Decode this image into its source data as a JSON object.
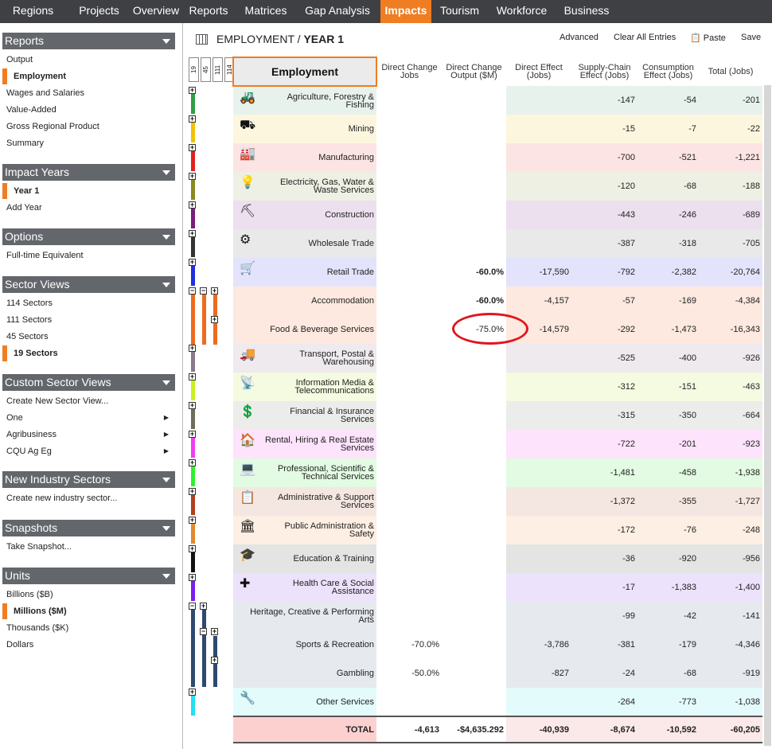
{
  "nav": {
    "tabs": [
      "Regions",
      "Projects",
      "Overview",
      "Reports",
      "Matrices",
      "Gap Analysis",
      "Impacts",
      "Tourism",
      "Workforce",
      "Business"
    ],
    "active": "Impacts"
  },
  "sidebar": {
    "reports": {
      "title": "Reports",
      "items": [
        "Output",
        "Employment",
        "Wages and Salaries",
        "Value-Added",
        "Gross Regional Product",
        "Summary"
      ],
      "selected": "Employment"
    },
    "impact_years": {
      "title": "Impact Years",
      "items": [
        "Year 1",
        "Add Year"
      ],
      "selected": "Year 1"
    },
    "options": {
      "title": "Options",
      "items": [
        "Full-time Equivalent"
      ]
    },
    "sector_views": {
      "title": "Sector Views",
      "items": [
        "114 Sectors",
        "111 Sectors",
        "45 Sectors",
        "19 Sectors"
      ],
      "selected": "19 Sectors"
    },
    "custom_views": {
      "title": "Custom Sector Views",
      "items": [
        "Create New Sector View...",
        "One",
        "Agribusiness",
        "CQU Ag Eg"
      ]
    },
    "new_industry": {
      "title": "New Industry Sectors",
      "items": [
        "Create new industry sector..."
      ]
    },
    "snapshots": {
      "title": "Snapshots",
      "items": [
        "Take Snapshot..."
      ]
    },
    "units": {
      "title": "Units",
      "items": [
        "Billions ($B)",
        "Millions ($M)",
        "Thousands ($K)",
        "Dollars"
      ],
      "selected": "Millions ($M)"
    }
  },
  "toolbar": {
    "title_a": "EMPLOYMENT",
    "sep": "/",
    "title_b": "YEAR 1",
    "advanced": "Advanced",
    "clear": "Clear All Entries",
    "paste": "Paste",
    "save": "Save"
  },
  "levels": [
    "19",
    "45",
    "111",
    "114"
  ],
  "columns": [
    "Employment",
    "Direct Change Jobs",
    "Direct Change Output ($M)",
    "Direct Effect (Jobs)",
    "Supply-Chain Effect (Jobs)",
    "Consumption Effect (Jobs)",
    "Total (Jobs)"
  ],
  "colors": {
    "accent": "#ef7d22",
    "nav": "#3e4044",
    "sidebar_header": "#63676c",
    "circle": "#e0161e"
  },
  "rows": [
    {
      "name": "Agriculture, Forestry & Fishing",
      "icon": "tractor-icon",
      "glyph": "🚜",
      "color": "#e8f2ec",
      "tree": "#2f9e44",
      "dcj": "",
      "dco": "",
      "de": "",
      "sc": "-147",
      "ce": "-54",
      "tot": "-201"
    },
    {
      "name": "Mining",
      "icon": "mining-truck-icon",
      "glyph": "⛟",
      "color": "#fdf6de",
      "tree": "#f2c200",
      "dcj": "",
      "dco": "",
      "de": "",
      "sc": "-15",
      "ce": "-7",
      "tot": "-22"
    },
    {
      "name": "Manufacturing",
      "icon": "factory-icon",
      "glyph": "🏭",
      "color": "#fde4e4",
      "tree": "#e02020",
      "dcj": "",
      "dco": "",
      "de": "",
      "sc": "-700",
      "ce": "-521",
      "tot": "-1,221"
    },
    {
      "name": "Electricity, Gas, Water & Waste Services",
      "icon": "lightbulb-icon",
      "glyph": "💡",
      "color": "#eef0e4",
      "tree": "#8a8a1e",
      "dcj": "",
      "dco": "",
      "de": "",
      "sc": "-120",
      "ce": "-68",
      "tot": "-188"
    },
    {
      "name": "Construction",
      "icon": "construction-worker-icon",
      "glyph": "⛏",
      "color": "#ece0ee",
      "tree": "#7a1e7e",
      "dcj": "",
      "dco": "",
      "de": "",
      "sc": "-443",
      "ce": "-246",
      "tot": "-689"
    },
    {
      "name": "Wholesale Trade",
      "icon": "forklift-icon",
      "glyph": "⚙",
      "color": "#e9e9e9",
      "tree": "#333333",
      "dcj": "",
      "dco": "",
      "de": "",
      "sc": "-387",
      "ce": "-318",
      "tot": "-705"
    },
    {
      "name": "Retail Trade",
      "icon": "shopping-cart-icon",
      "glyph": "🛒",
      "color": "#e3e3fb",
      "tree": "#1e2ee0",
      "dcj": "",
      "dco": "-60.0%",
      "de": "-17,590",
      "sc": "-792",
      "ce": "-2,382",
      "tot": "-20,764"
    },
    {
      "name": "Accommodation",
      "icon": "",
      "glyph": "",
      "color": "#fde9df",
      "tree": "#ef6a1e",
      "dcj": "",
      "dco": "-60.0%",
      "de": "-4,157",
      "sc": "-57",
      "ce": "-169",
      "tot": "-4,384"
    },
    {
      "name": "Food & Beverage Services",
      "icon": "",
      "glyph": "",
      "color": "#fde9df",
      "tree": "#ef6a1e",
      "dcj": "",
      "dco": "-75.0%",
      "de": "-14,579",
      "sc": "-292",
      "ce": "-1,473",
      "tot": "-16,343"
    },
    {
      "name": "Transport, Postal & Warehousing",
      "icon": "truck-icon",
      "glyph": "🚚",
      "color": "#eeeaee",
      "tree": "#8a7a8a",
      "dcj": "",
      "dco": "",
      "de": "",
      "sc": "-525",
      "ce": "-400",
      "tot": "-926"
    },
    {
      "name": "Information Media & Telecommunications",
      "icon": "satellite-dish-icon",
      "glyph": "📡",
      "color": "#f4fbe0",
      "tree": "#c8f01e",
      "dcj": "",
      "dco": "",
      "de": "",
      "sc": "-312",
      "ce": "-151",
      "tot": "-463"
    },
    {
      "name": "Financial & Insurance Services",
      "icon": "dollar-icon",
      "glyph": "💲",
      "color": "#ececea",
      "tree": "#6e6e5a",
      "dcj": "",
      "dco": "",
      "de": "",
      "sc": "-315",
      "ce": "-350",
      "tot": "-664"
    },
    {
      "name": "Rental, Hiring & Real Estate Services",
      "icon": "house-icon",
      "glyph": "🏠",
      "color": "#fde3fb",
      "tree": "#f03cf0",
      "dcj": "",
      "dco": "",
      "de": "",
      "sc": "-722",
      "ce": "-201",
      "tot": "-923"
    },
    {
      "name": "Professional, Scientific & Technical Services",
      "icon": "computer-icon",
      "glyph": "💻",
      "color": "#e2fbe2",
      "tree": "#2ef02e",
      "dcj": "",
      "dco": "",
      "de": "",
      "sc": "-1,481",
      "ce": "-458",
      "tot": "-1,938"
    },
    {
      "name": "Administrative & Support Services",
      "icon": "clipboard-icon",
      "glyph": "📋",
      "color": "#f4e6e0",
      "tree": "#b0401e",
      "dcj": "",
      "dco": "",
      "de": "",
      "sc": "-1,372",
      "ce": "-355",
      "tot": "-1,727"
    },
    {
      "name": "Public Administration & Safety",
      "icon": "government-building-icon",
      "glyph": "🏛",
      "color": "#fdefe3",
      "tree": "#e08a2e",
      "dcj": "",
      "dco": "",
      "de": "",
      "sc": "-172",
      "ce": "-76",
      "tot": "-248"
    },
    {
      "name": "Education & Training",
      "icon": "graduation-cap-icon",
      "glyph": "🎓",
      "color": "#e4e4e4",
      "tree": "#111111",
      "dcj": "",
      "dco": "",
      "de": "",
      "sc": "-36",
      "ce": "-920",
      "tot": "-956"
    },
    {
      "name": "Health Care & Social Assistance",
      "icon": "health-cross-icon",
      "glyph": "✚",
      "color": "#ede2fb",
      "tree": "#7a1ef0",
      "dcj": "",
      "dco": "",
      "de": "",
      "sc": "-17",
      "ce": "-1,383",
      "tot": "-1,400"
    },
    {
      "name": "Heritage, Creative & Performing Arts",
      "icon": "",
      "glyph": "",
      "color": "#e6e9ee",
      "tree": "#2e4a6e",
      "dcj": "",
      "dco": "",
      "de": "",
      "sc": "-99",
      "ce": "-42",
      "tot": "-141"
    },
    {
      "name": "Sports & Recreation",
      "icon": "",
      "glyph": "",
      "color": "#e6e9ee",
      "tree": "#2e4a6e",
      "dcj": "-70.0%",
      "dco": "",
      "de": "-3,786",
      "sc": "-381",
      "ce": "-179",
      "tot": "-4,346"
    },
    {
      "name": "Gambling",
      "icon": "",
      "glyph": "",
      "color": "#e6e9ee",
      "tree": "#2e4a6e",
      "dcj": "-50.0%",
      "dco": "",
      "de": "-827",
      "sc": "-24",
      "ce": "-68",
      "tot": "-919"
    },
    {
      "name": "Other Services",
      "icon": "tools-icon",
      "glyph": "🔧",
      "color": "#e3fbfb",
      "tree": "#1ee0f0",
      "dcj": "",
      "dco": "",
      "de": "",
      "sc": "-264",
      "ce": "-773",
      "tot": "-1,038"
    }
  ],
  "total": {
    "label": "TOTAL",
    "dcj": "-4,613",
    "dco": "-$4,635.292",
    "de": "-40,939",
    "sc": "-8,674",
    "ce": "-10,592",
    "tot": "-60,205"
  }
}
